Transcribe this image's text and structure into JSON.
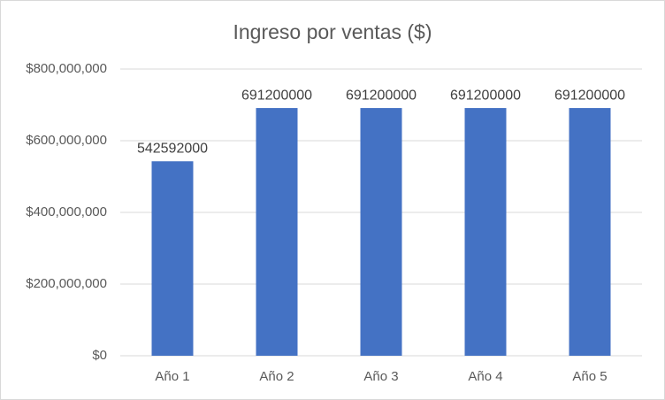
{
  "chart_data": {
    "type": "bar",
    "title": "Ingreso por ventas ($)",
    "categories": [
      "Año 1",
      "Año 2",
      "Año 3",
      "Año 4",
      "Año 5"
    ],
    "values": [
      542592000,
      691200000,
      691200000,
      691200000,
      691200000
    ],
    "color": "#4472c4",
    "ylim": [
      0,
      800000000
    ],
    "yticks": [
      {
        "value": 0,
        "label": "$0"
      },
      {
        "value": 200000000,
        "label": "$200,000,000"
      },
      {
        "value": 400000000,
        "label": "$400,000,000"
      },
      {
        "value": 600000000,
        "label": "$600,000,000"
      },
      {
        "value": 800000000,
        "label": "$800,000,000"
      }
    ],
    "grid": true
  }
}
